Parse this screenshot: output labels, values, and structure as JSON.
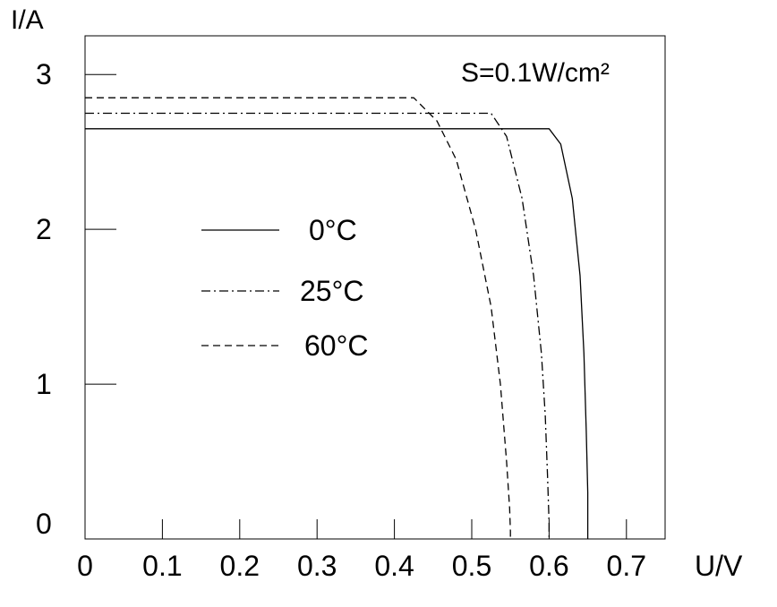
{
  "chart_data": {
    "type": "line",
    "ylabel": "I/A",
    "xlabel": "U/V",
    "annotation": "S=0.1W/cm²",
    "xlim": [
      0,
      0.75
    ],
    "ylim": [
      0,
      3.25
    ],
    "x_ticks": [
      {
        "value": 0,
        "label": "0"
      },
      {
        "value": 0.1,
        "label": "0.1"
      },
      {
        "value": 0.2,
        "label": "0.2"
      },
      {
        "value": 0.3,
        "label": "0.3"
      },
      {
        "value": 0.4,
        "label": "0.4"
      },
      {
        "value": 0.5,
        "label": "0.5"
      },
      {
        "value": 0.6,
        "label": "0.6"
      },
      {
        "value": 0.7,
        "label": "0.7"
      }
    ],
    "y_ticks": [
      {
        "value": 0,
        "label": "0"
      },
      {
        "value": 1,
        "label": "1"
      },
      {
        "value": 2,
        "label": "2"
      },
      {
        "value": 3,
        "label": "3"
      }
    ],
    "grid": false,
    "legend_position": "center-left",
    "series": [
      {
        "name": "0°C",
        "line_style": "solid",
        "x": [
          0,
          0.55,
          0.6,
          0.615,
          0.63,
          0.64,
          0.645,
          0.648,
          0.65,
          0.65
        ],
        "y": [
          2.65,
          2.65,
          2.65,
          2.55,
          2.2,
          1.7,
          1.2,
          0.7,
          0.3,
          0
        ]
      },
      {
        "name": "25°C",
        "line_style": "dash-dot",
        "x": [
          0,
          0.47,
          0.525,
          0.545,
          0.565,
          0.58,
          0.59,
          0.595,
          0.598,
          0.6,
          0.6
        ],
        "y": [
          2.75,
          2.75,
          2.75,
          2.6,
          2.2,
          1.7,
          1.2,
          0.8,
          0.4,
          0.1,
          0
        ]
      },
      {
        "name": "60°C",
        "line_style": "dashed",
        "x": [
          0,
          0.38,
          0.425,
          0.455,
          0.48,
          0.505,
          0.525,
          0.537,
          0.545,
          0.549,
          0.55,
          0.55
        ],
        "y": [
          2.85,
          2.85,
          2.85,
          2.7,
          2.45,
          2.0,
          1.5,
          1.0,
          0.5,
          0.2,
          0.05,
          0
        ]
      }
    ]
  }
}
